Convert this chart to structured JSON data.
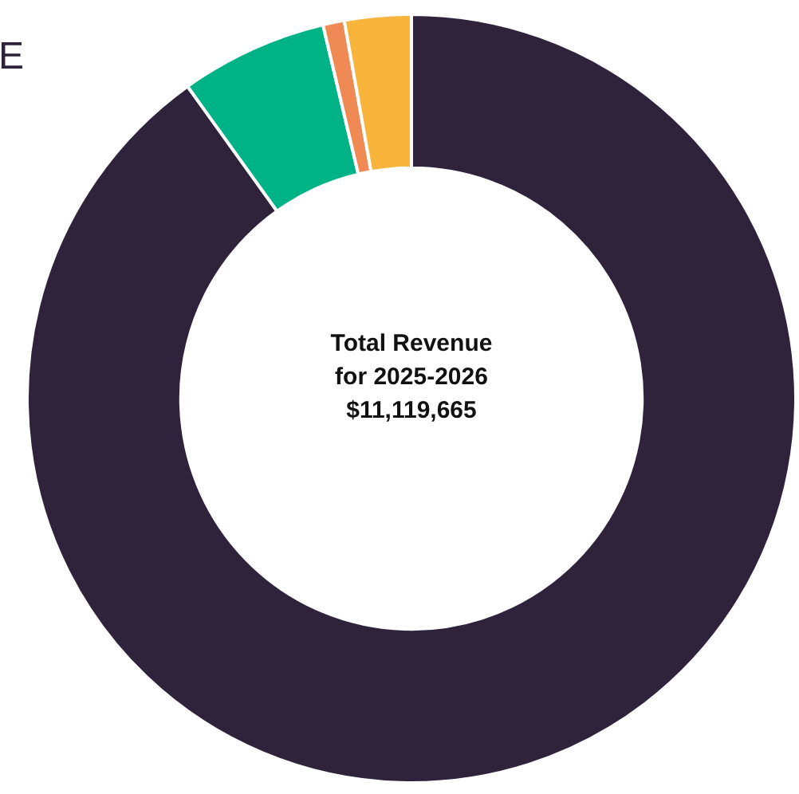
{
  "chart_data": {
    "type": "donut",
    "categories": [
      null,
      null,
      null,
      null
    ],
    "values": [
      90.1,
      6.2,
      0.9,
      2.8
    ],
    "colors": [
      "#2f223b",
      "#00b386",
      "#f08a54",
      "#f9b43c"
    ],
    "annotations": [
      "E",
      "Total Revenue",
      "for 2025-2026",
      "$11,119,665"
    ]
  }
}
